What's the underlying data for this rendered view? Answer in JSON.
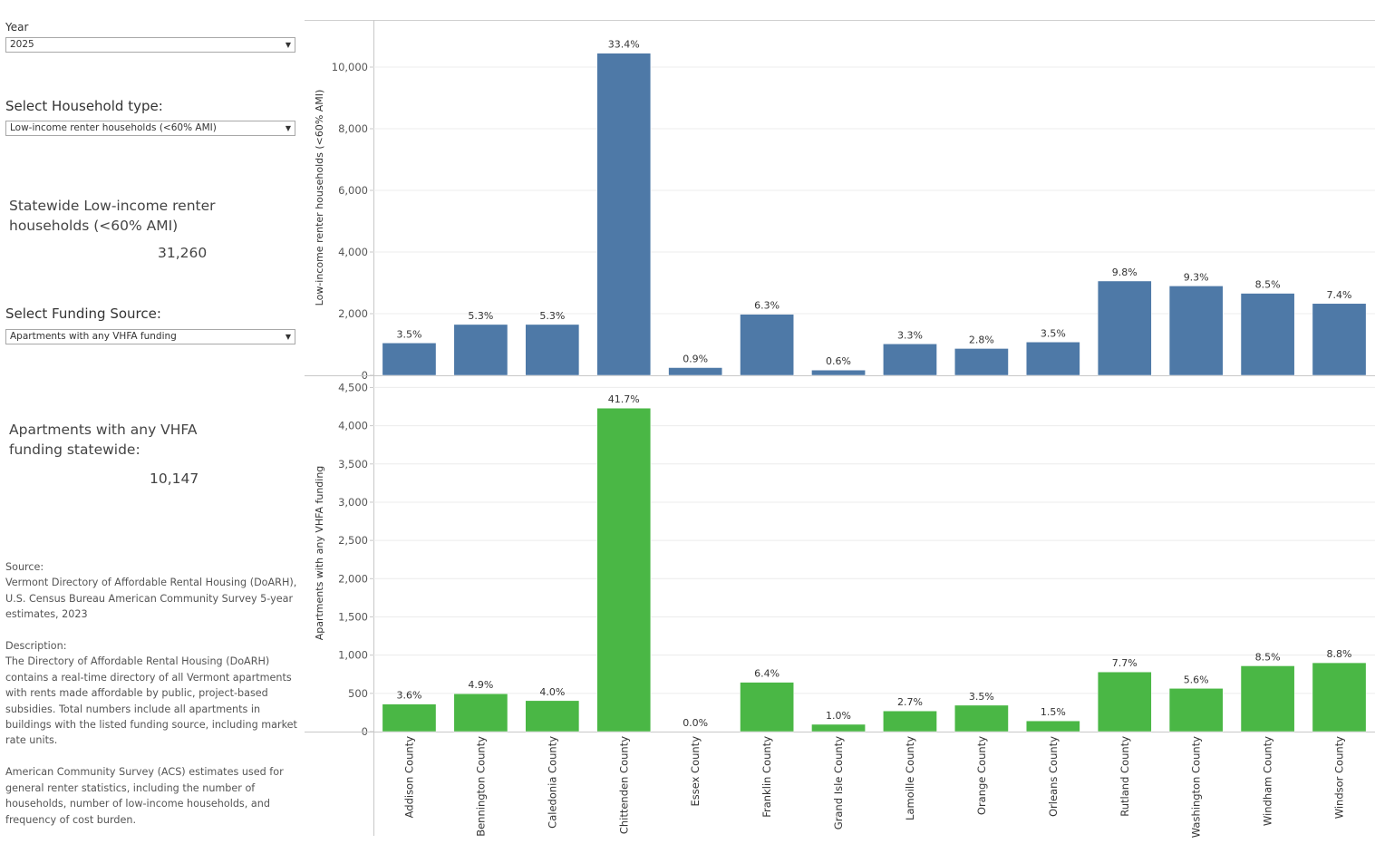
{
  "filters": {
    "year_label": "Year",
    "year_value": "2025",
    "household_label": "Select Household type:",
    "household_value": "Low-income renter households (<60% AMI)",
    "funding_label": "Select Funding Source:",
    "funding_value": "Apartments with any VHFA funding"
  },
  "kpis": {
    "households_label": "Statewide Low-income renter households (<60% AMI)",
    "households_value": "31,260",
    "apartments_label": "Apartments with any VHFA funding statewide:",
    "apartments_value": "10,147"
  },
  "notes": {
    "source_heading": "Source:",
    "source_text": "Vermont Directory of Affordable Rental Housing (DoARH), U.S. Census Bureau American Community Survey 5-year estimates, 2023",
    "description_heading": "Description:",
    "description_text": "The Directory of Affordable Rental Housing (DoARH) contains a real-time directory of all Vermont apartments with rents made affordable by public, project-based subsidies. Total numbers include all apartments in buildings with the listed funding source, including market rate units.",
    "acs_text": "American Community Survey (ACS) estimates used for general renter statistics, including the number of households, number of low-income households, and frequency of cost burden."
  },
  "chart_data": [
    {
      "type": "bar",
      "ylabel": "Low-income renter households (<60% AMI)",
      "ylim": [
        0,
        11500
      ],
      "yticks": [
        0,
        2000,
        4000,
        6000,
        8000,
        10000
      ],
      "ytick_labels": [
        "0",
        "2,000",
        "4,000",
        "6,000",
        "8,000",
        "10,000"
      ],
      "color": "#4e79a7",
      "categories": [
        "Addison County",
        "Bennington County",
        "Caledonia County",
        "Chittenden County",
        "Essex County",
        "Franklin County",
        "Grand Isle County",
        "Lamoille County",
        "Orange County",
        "Orleans County",
        "Rutland County",
        "Washington County",
        "Windham County",
        "Windsor County"
      ],
      "values": [
        1050,
        1650,
        1650,
        10450,
        250,
        1980,
        170,
        1020,
        870,
        1080,
        3060,
        2900,
        2660,
        2330
      ],
      "labels": [
        "3.5%",
        "5.3%",
        "5.3%",
        "33.4%",
        "0.9%",
        "6.3%",
        "0.6%",
        "3.3%",
        "2.8%",
        "3.5%",
        "9.8%",
        "9.3%",
        "8.5%",
        "7.4%"
      ],
      "grid": true
    },
    {
      "type": "bar",
      "ylabel": "Apartments with any VHFA funding",
      "ylim": [
        0,
        4600
      ],
      "yticks": [
        0,
        500,
        1000,
        1500,
        2000,
        2500,
        3000,
        3500,
        4000,
        4500
      ],
      "ytick_labels": [
        "0",
        "500",
        "1,000",
        "1,500",
        "2,000",
        "2,500",
        "3,000",
        "3,500",
        "4,000",
        "4,500"
      ],
      "color": "#4ab745",
      "categories": [
        "Addison County",
        "Bennington County",
        "Caledonia County",
        "Chittenden County",
        "Essex County",
        "Franklin County",
        "Grand Isle County",
        "Lamoille County",
        "Orange County",
        "Orleans County",
        "Rutland County",
        "Washington County",
        "Windham County",
        "Windsor County"
      ],
      "values": [
        360,
        495,
        405,
        4230,
        0,
        645,
        95,
        270,
        345,
        140,
        780,
        565,
        860,
        900
      ],
      "labels": [
        "3.6%",
        "4.9%",
        "4.0%",
        "41.7%",
        "0.0%",
        "6.4%",
        "1.0%",
        "2.7%",
        "3.5%",
        "1.5%",
        "7.7%",
        "5.6%",
        "8.5%",
        "8.8%"
      ],
      "grid": true
    }
  ]
}
